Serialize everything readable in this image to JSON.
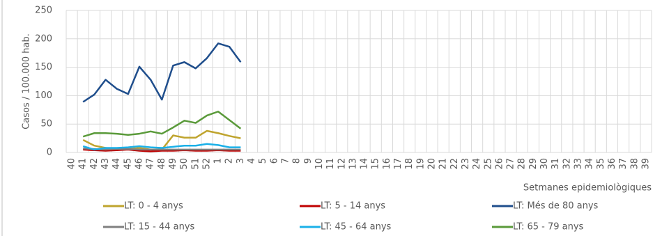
{
  "chart_data": {
    "type": "line",
    "y_label": "Casos / 100.000 hab.",
    "x_label": "Setmanes epidemiològiques",
    "categories": [
      "40",
      "41",
      "42",
      "43",
      "44",
      "45",
      "46",
      "47",
      "48",
      "49",
      "50",
      "51",
      "52",
      "1",
      "2",
      "3",
      "4",
      "5",
      "6",
      "7",
      "8",
      "9",
      "10",
      "11",
      "12",
      "13",
      "14",
      "15",
      "16",
      "17",
      "18",
      "19",
      "20",
      "21",
      "22",
      "23",
      "24",
      "25",
      "26",
      "27",
      "28",
      "29",
      "30",
      "31",
      "32",
      "33",
      "34",
      "35",
      "36",
      "37",
      "38",
      "39"
    ],
    "ylim": [
      0,
      250
    ],
    "yticks": [
      0,
      50,
      100,
      150,
      200,
      250
    ],
    "grid": true,
    "series": [
      {
        "name": "LT: 0 - 4 anys",
        "color": "#bfa42e",
        "values": [
          null,
          22,
          12,
          8,
          6,
          6,
          8,
          5,
          5,
          30,
          26,
          26,
          38,
          34,
          29,
          25,
          null,
          null,
          null,
          null,
          null,
          null,
          null,
          null,
          null,
          null,
          null,
          null,
          null,
          null,
          null,
          null,
          null,
          null,
          null,
          null,
          null,
          null,
          null,
          null,
          null,
          null,
          null,
          null,
          null,
          null,
          null,
          null,
          null,
          null,
          null,
          null
        ]
      },
      {
        "name": "LT: 5 - 14 anys",
        "color": "#c00000",
        "values": [
          null,
          5,
          4,
          3,
          4,
          5,
          3,
          2,
          3,
          3,
          4,
          3,
          3,
          4,
          3,
          3,
          null,
          null,
          null,
          null,
          null,
          null,
          null,
          null,
          null,
          null,
          null,
          null,
          null,
          null,
          null,
          null,
          null,
          null,
          null,
          null,
          null,
          null,
          null,
          null,
          null,
          null,
          null,
          null,
          null,
          null,
          null,
          null,
          null,
          null,
          null,
          null
        ]
      },
      {
        "name": "LT: Més de 80 anys",
        "color": "#1f4e8c",
        "values": [
          null,
          89,
          102,
          128,
          112,
          103,
          151,
          128,
          93,
          153,
          159,
          148,
          166,
          192,
          186,
          159,
          null,
          null,
          null,
          null,
          null,
          null,
          null,
          null,
          null,
          null,
          null,
          null,
          null,
          null,
          null,
          null,
          null,
          null,
          null,
          null,
          null,
          null,
          null,
          null,
          null,
          null,
          null,
          null,
          null,
          null,
          null,
          null,
          null,
          null,
          null,
          null
        ]
      },
      {
        "name": "LT: 15 - 44 anys",
        "color": "#808080",
        "values": [
          null,
          7,
          6,
          5,
          6,
          6,
          5,
          5,
          5,
          5,
          5,
          5,
          5,
          5,
          5,
          5,
          null,
          null,
          null,
          null,
          null,
          null,
          null,
          null,
          null,
          null,
          null,
          null,
          null,
          null,
          null,
          null,
          null,
          null,
          null,
          null,
          null,
          null,
          null,
          null,
          null,
          null,
          null,
          null,
          null,
          null,
          null,
          null,
          null,
          null,
          null,
          null
        ]
      },
      {
        "name": "LT: 45 - 64 anys",
        "color": "#1ab0e8",
        "values": [
          null,
          11,
          5,
          8,
          8,
          9,
          11,
          9,
          8,
          10,
          12,
          12,
          15,
          13,
          9,
          9,
          null,
          null,
          null,
          null,
          null,
          null,
          null,
          null,
          null,
          null,
          null,
          null,
          null,
          null,
          null,
          null,
          null,
          null,
          null,
          null,
          null,
          null,
          null,
          null,
          null,
          null,
          null,
          null,
          null,
          null,
          null,
          null,
          null,
          null,
          null,
          null
        ]
      },
      {
        "name": "LT: 65 - 79 anys",
        "color": "#5a9a3a",
        "values": [
          null,
          28,
          34,
          34,
          33,
          31,
          33,
          37,
          33,
          44,
          56,
          52,
          65,
          72,
          57,
          42,
          null,
          null,
          null,
          null,
          null,
          null,
          null,
          null,
          null,
          null,
          null,
          null,
          null,
          null,
          null,
          null,
          null,
          null,
          null,
          null,
          null,
          null,
          null,
          null,
          null,
          null,
          null,
          null,
          null,
          null,
          null,
          null,
          null,
          null,
          null,
          null
        ]
      }
    ]
  }
}
